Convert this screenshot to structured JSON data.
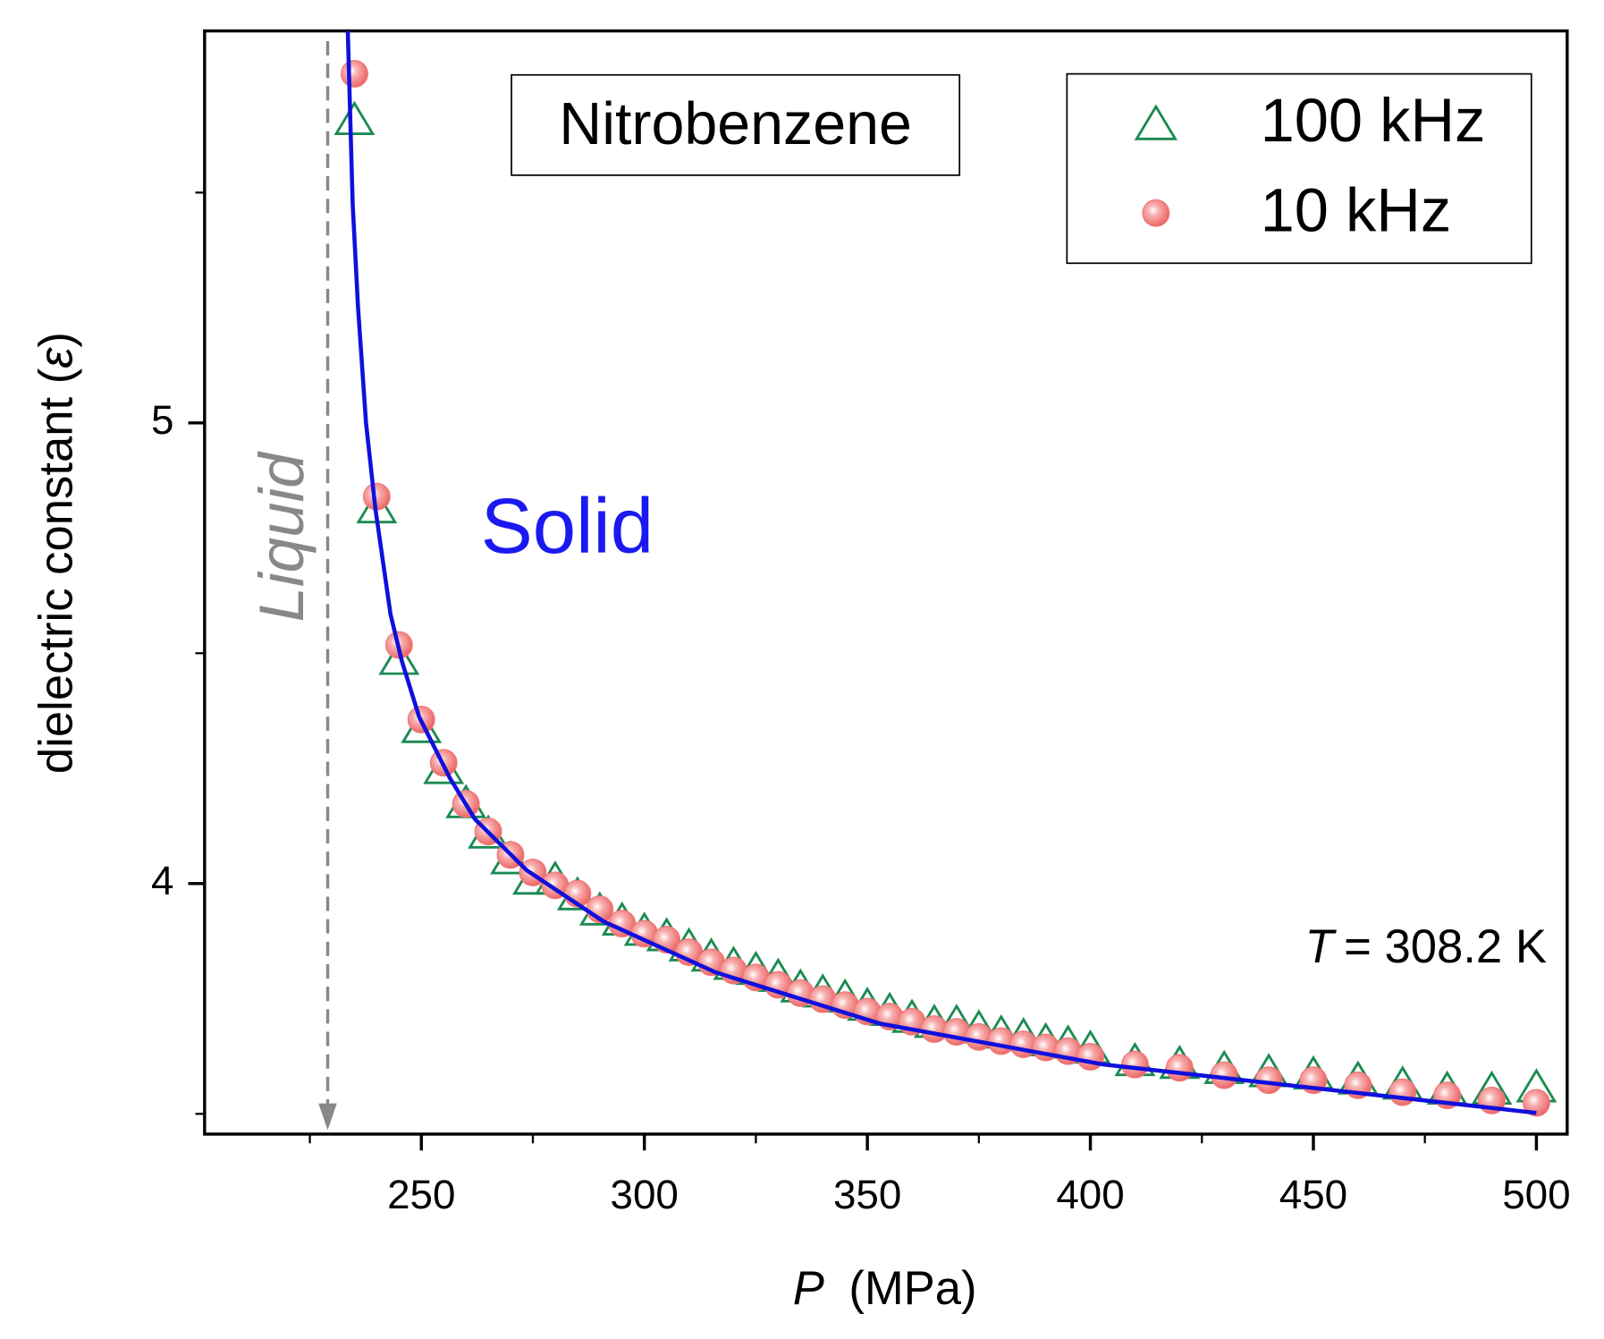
{
  "chart_data": {
    "type": "scatter",
    "title": "Nitrobenzene",
    "xlabel": [
      "P",
      "(MPa)"
    ],
    "ylabel": [
      "dielectric constant (",
      "ε",
      ")"
    ],
    "annotations": {
      "solid": "Solid",
      "liquid": "Liquid",
      "temperature": [
        "T",
        "= 308.2 K"
      ]
    },
    "xlim": [
      201.4,
      506.9
    ],
    "ylim": [
      3.456,
      5.851
    ],
    "xticks": [
      250,
      300,
      350,
      400,
      450,
      500
    ],
    "xminorticks": [
      225,
      275,
      325,
      375,
      425,
      475
    ],
    "yticks": [
      4,
      5
    ],
    "yminorticks": [
      3.5,
      4.5,
      5.5
    ],
    "phase_boundary_x": 229,
    "series": [
      {
        "name": "100 kHz",
        "color": "#1b8a52",
        "marker": "triangle",
        "x": [
          235,
          240,
          245,
          250,
          255,
          260,
          265,
          270,
          275,
          280,
          285,
          290,
          295,
          300,
          305,
          310,
          315,
          320,
          325,
          330,
          335,
          340,
          345,
          350,
          355,
          360,
          365,
          370,
          375,
          380,
          385,
          390,
          395,
          400,
          410,
          420,
          430,
          440,
          450,
          460,
          470,
          480,
          490,
          500
        ],
        "values": [
          5.656,
          4.813,
          4.484,
          4.336,
          4.247,
          4.173,
          4.107,
          4.051,
          4.007,
          4.007,
          3.973,
          3.94,
          3.918,
          3.896,
          3.884,
          3.862,
          3.84,
          3.822,
          3.811,
          3.796,
          3.773,
          3.762,
          3.751,
          3.733,
          3.722,
          3.707,
          3.696,
          3.696,
          3.684,
          3.673,
          3.667,
          3.656,
          3.651,
          3.64,
          3.613,
          3.607,
          3.596,
          3.589,
          3.584,
          3.573,
          3.562,
          3.551,
          3.551,
          3.556
        ]
      },
      {
        "name": "10 kHz",
        "color": "#f07878",
        "marker": "circle",
        "x": [
          235,
          240,
          245,
          250,
          255,
          260,
          265,
          270,
          275,
          280,
          285,
          290,
          295,
          300,
          305,
          310,
          315,
          320,
          325,
          330,
          335,
          340,
          345,
          350,
          355,
          360,
          365,
          370,
          375,
          380,
          385,
          390,
          395,
          400,
          410,
          420,
          430,
          440,
          450,
          460,
          470,
          480,
          490,
          500
        ],
        "values": [
          5.758,
          4.84,
          4.518,
          4.356,
          4.262,
          4.173,
          4.113,
          4.062,
          4.024,
          3.996,
          3.978,
          3.944,
          3.913,
          3.891,
          3.878,
          3.851,
          3.829,
          3.811,
          3.796,
          3.78,
          3.762,
          3.749,
          3.736,
          3.722,
          3.711,
          3.7,
          3.684,
          3.678,
          3.667,
          3.658,
          3.651,
          3.644,
          3.636,
          3.624,
          3.607,
          3.6,
          3.584,
          3.573,
          3.573,
          3.562,
          3.547,
          3.54,
          3.529,
          3.524
        ]
      }
    ],
    "fit": {
      "color": "#1010dd",
      "x": [
        233.5,
        234.6,
        235.8,
        237.6,
        239.7,
        243.1,
        245.6,
        249.5,
        256.4,
        262,
        273.6,
        290.8,
        316,
        352.8,
        403,
        500
      ],
      "values": [
        5.851,
        5.473,
        5.251,
        5.0,
        4.813,
        4.584,
        4.484,
        4.362,
        4.229,
        4.14,
        4.029,
        3.918,
        3.807,
        3.696,
        3.607,
        3.502
      ]
    }
  }
}
